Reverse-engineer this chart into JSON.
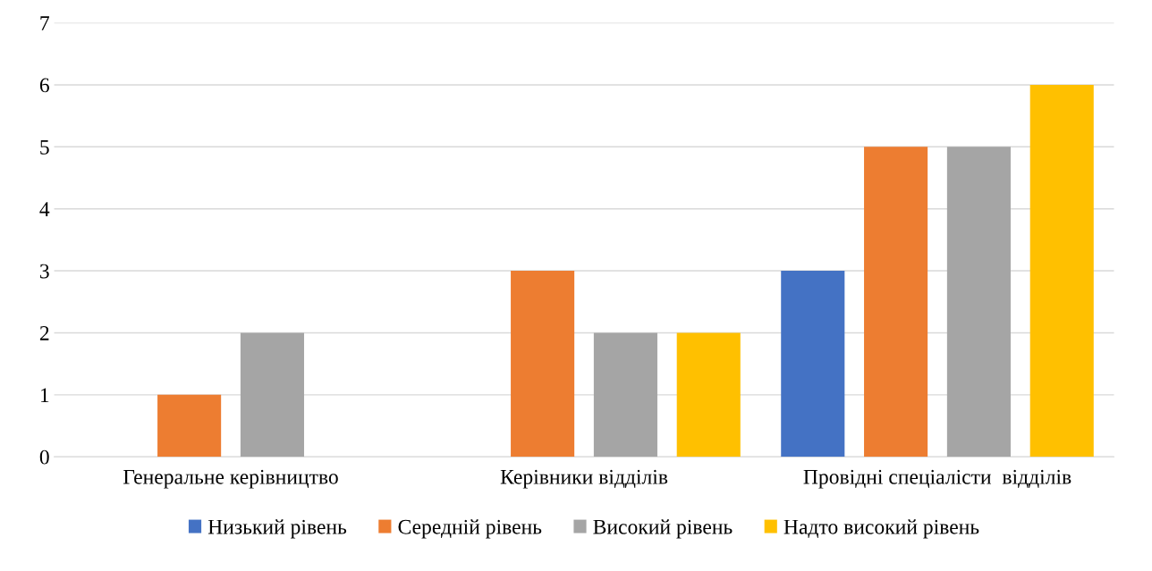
{
  "chart_data": {
    "type": "bar",
    "categories": [
      "Генеральне керівництво",
      "Керівники відділів",
      "Провідні спеціалісти  відділів"
    ],
    "series": [
      {
        "name": "Низький рівень",
        "color": "#4472c4",
        "values": [
          0,
          0,
          3
        ]
      },
      {
        "name": "Середній рівень",
        "color": "#ed7d31",
        "values": [
          1,
          3,
          5
        ]
      },
      {
        "name": "Високий рівень",
        "color": "#a5a5a5",
        "values": [
          2,
          2,
          5
        ]
      },
      {
        "name": "Надто високий рівень",
        "color": "#ffc000",
        "values": [
          0,
          2,
          6
        ]
      }
    ],
    "ylim": [
      0,
      7
    ],
    "yticks": [
      0,
      1,
      2,
      3,
      4,
      5,
      6,
      7
    ],
    "grid": "y",
    "legend": "bottom"
  }
}
